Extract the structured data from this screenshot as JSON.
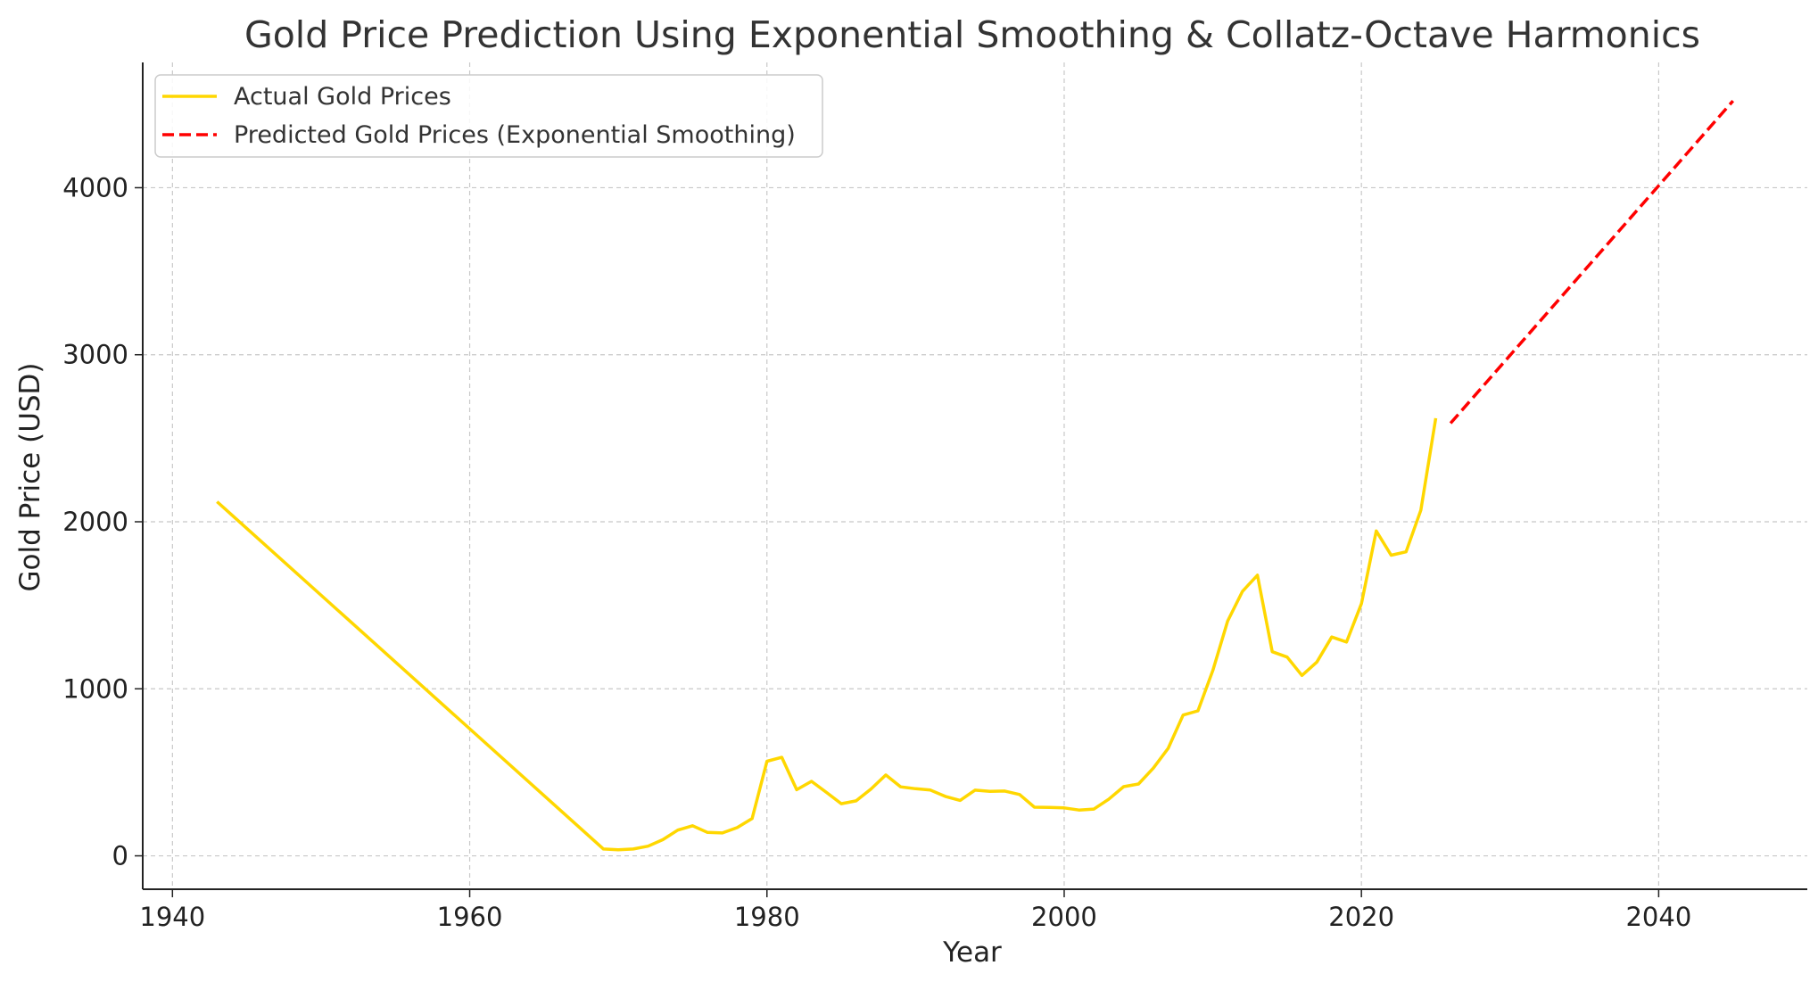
{
  "chart_data": {
    "type": "line",
    "title": "Gold Price Prediction Using Exponential Smoothing & Collatz-Octave Harmonics",
    "xlabel": "Year",
    "ylabel": "Gold Price (USD)",
    "xlim": [
      1938,
      2050
    ],
    "ylim": [
      -200,
      4750
    ],
    "xticks": [
      1940,
      1960,
      1980,
      2000,
      2020,
      2040
    ],
    "yticks": [
      0,
      1000,
      2000,
      3000,
      4000
    ],
    "grid": true,
    "legend_position": "top-left",
    "series": [
      {
        "name": "Actual Gold Prices",
        "color": "#FFD700",
        "style": "solid",
        "points": [
          [
            1943,
            2120
          ],
          [
            1969,
            41
          ],
          [
            1970,
            36
          ],
          [
            1971,
            41
          ],
          [
            1972,
            58
          ],
          [
            1973,
            97
          ],
          [
            1974,
            154
          ],
          [
            1975,
            180
          ],
          [
            1976,
            140
          ],
          [
            1977,
            137
          ],
          [
            1978,
            169
          ],
          [
            1979,
            223
          ],
          [
            1980,
            566
          ],
          [
            1981,
            590
          ],
          [
            1982,
            396
          ],
          [
            1983,
            446
          ],
          [
            1984,
            380
          ],
          [
            1985,
            312
          ],
          [
            1986,
            329
          ],
          [
            1987,
            400
          ],
          [
            1988,
            484
          ],
          [
            1989,
            413
          ],
          [
            1990,
            402
          ],
          [
            1991,
            394
          ],
          [
            1992,
            356
          ],
          [
            1993,
            332
          ],
          [
            1994,
            393
          ],
          [
            1995,
            386
          ],
          [
            1996,
            388
          ],
          [
            1997,
            367
          ],
          [
            1998,
            291
          ],
          [
            1999,
            290
          ],
          [
            2000,
            287
          ],
          [
            2001,
            274
          ],
          [
            2002,
            280
          ],
          [
            2003,
            339
          ],
          [
            2004,
            414
          ],
          [
            2005,
            430
          ],
          [
            2006,
            525
          ],
          [
            2007,
            644
          ],
          [
            2008,
            843
          ],
          [
            2009,
            868
          ],
          [
            2010,
            1110
          ],
          [
            2011,
            1405
          ],
          [
            2012,
            1584
          ],
          [
            2013,
            1680
          ],
          [
            2014,
            1222
          ],
          [
            2015,
            1190
          ],
          [
            2016,
            1080
          ],
          [
            2017,
            1160
          ],
          [
            2018,
            1310
          ],
          [
            2019,
            1280
          ],
          [
            2020,
            1510
          ],
          [
            2021,
            1945
          ],
          [
            2022,
            1800
          ],
          [
            2023,
            1820
          ],
          [
            2024,
            2070
          ],
          [
            2025,
            2620
          ]
        ]
      },
      {
        "name": "Predicted Gold Prices (Exponential Smoothing)",
        "color": "#FF0000",
        "style": "dashed",
        "points": [
          [
            2026,
            2590
          ],
          [
            2045,
            4520
          ]
        ]
      }
    ]
  }
}
